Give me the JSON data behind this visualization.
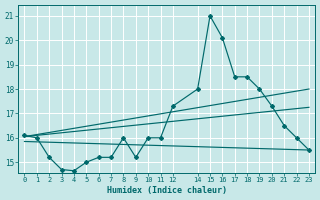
{
  "xlabel": "Humidex (Indice chaleur)",
  "background_color": "#c8e8e8",
  "grid_color": "#ffffff",
  "line_color": "#00696b",
  "xlim": [
    -0.5,
    23.5
  ],
  "ylim": [
    14.55,
    21.45
  ],
  "yticks": [
    15,
    16,
    17,
    18,
    19,
    20,
    21
  ],
  "xtick_positions": [
    0,
    1,
    2,
    3,
    4,
    5,
    6,
    7,
    8,
    9,
    10,
    11,
    12,
    14,
    15,
    16,
    17,
    18,
    19,
    20,
    21,
    22,
    23
  ],
  "xtick_labels": [
    "0",
    "1",
    "2",
    "3",
    "4",
    "5",
    "6",
    "7",
    "8",
    "9",
    "10",
    "11",
    "12",
    "14",
    "15",
    "16",
    "17",
    "18",
    "19",
    "20",
    "21",
    "22",
    "23"
  ],
  "line1_x": [
    0,
    1,
    2,
    3,
    4,
    5,
    6,
    7,
    8,
    9,
    10,
    11,
    12,
    14,
    15,
    16,
    17,
    18,
    19,
    20,
    21,
    22,
    23
  ],
  "line1_y": [
    16.1,
    16.0,
    15.2,
    14.7,
    14.65,
    15.0,
    15.2,
    15.2,
    16.0,
    15.2,
    16.0,
    16.0,
    17.3,
    18.0,
    21.0,
    20.1,
    18.5,
    18.5,
    18.0,
    17.3,
    16.5,
    16.0,
    15.5
  ],
  "line2_x": [
    0,
    23
  ],
  "line2_y": [
    16.05,
    18.0
  ],
  "line3_x": [
    0,
    23
  ],
  "line3_y": [
    15.85,
    15.5
  ],
  "line4_x": [
    0,
    23
  ],
  "line4_y": [
    16.05,
    17.25
  ]
}
